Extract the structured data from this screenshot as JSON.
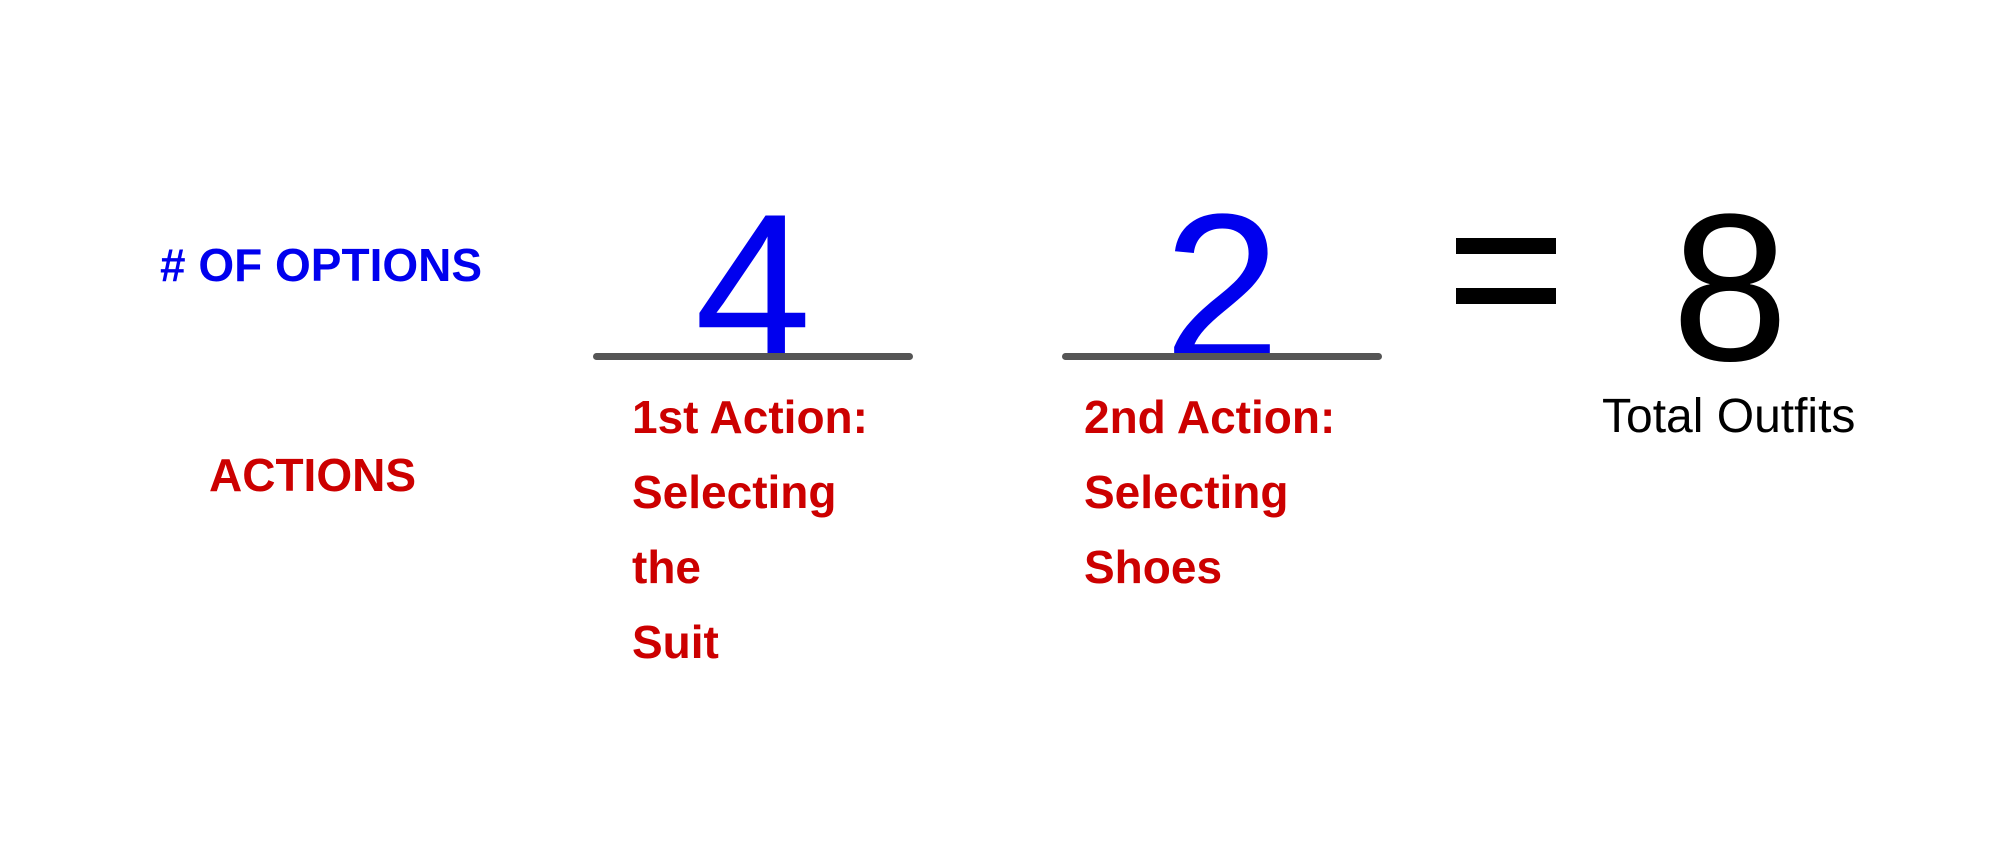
{
  "colors": {
    "options_blue": "#0000ee",
    "actions_red": "#cc0000",
    "total_black": "#000000",
    "underline_gray": "#555555"
  },
  "row_labels": {
    "options": "# OF OPTIONS",
    "actions": "ACTIONS"
  },
  "slots": [
    {
      "value": "4",
      "action_lines": [
        "1st Action:",
        "Selecting",
        "the",
        "Suit"
      ]
    },
    {
      "value": "2",
      "action_lines": [
        "2nd Action:",
        "Selecting",
        "Shoes"
      ]
    }
  ],
  "result": {
    "operator": "=",
    "value": "8",
    "caption": "Total Outfits"
  }
}
